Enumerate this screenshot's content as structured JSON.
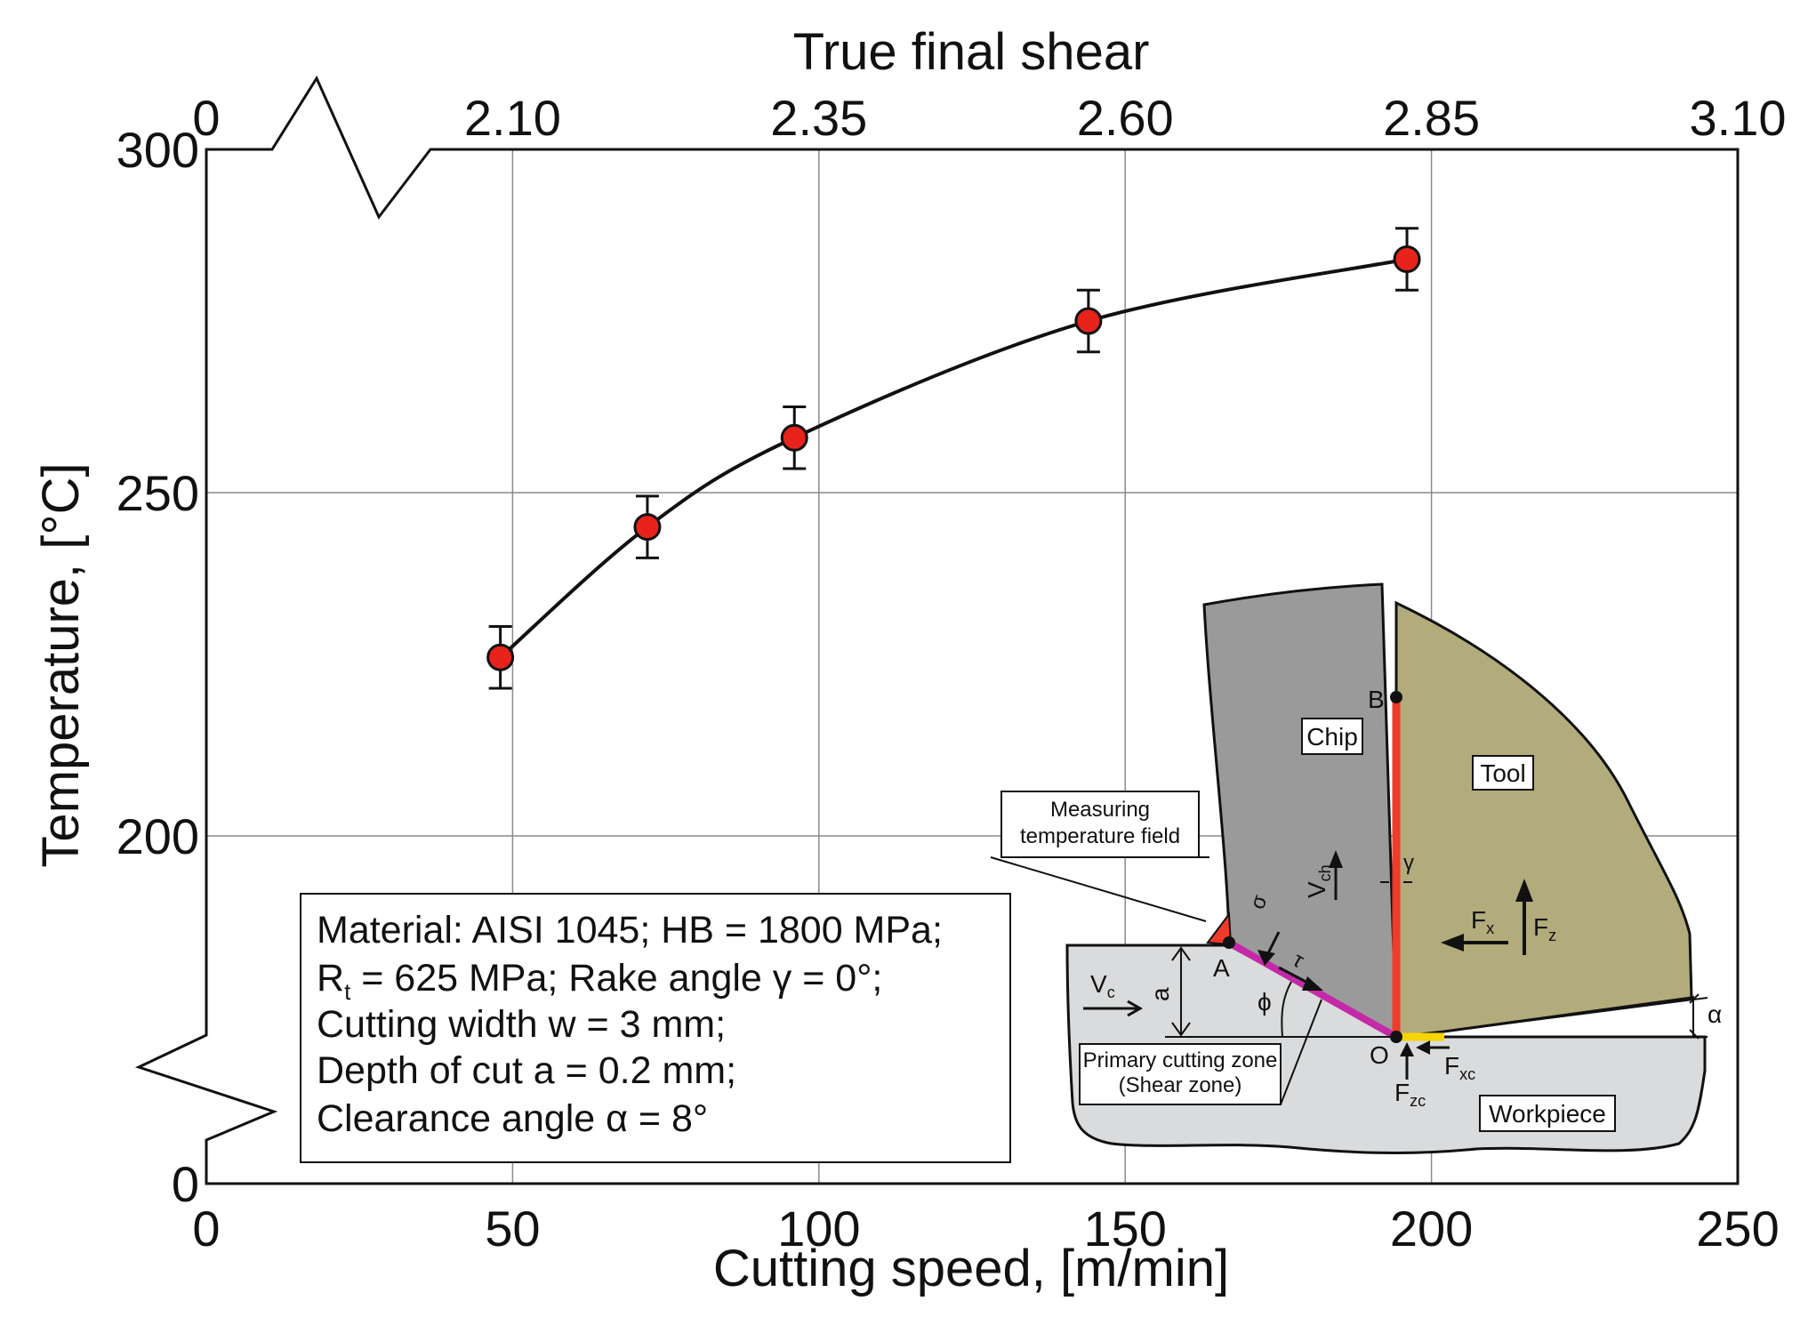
{
  "chart_data": {
    "type": "scatter",
    "xlabel": "Cutting speed, [m/min]",
    "ylabel": "Temperature, [°C]",
    "top_axis_label": "True final shear",
    "xlim": [
      0,
      250
    ],
    "ylim": [
      0,
      300
    ],
    "y_axis_break": true,
    "x_ticks": [
      "0",
      "50",
      "100",
      "150",
      "200",
      "250"
    ],
    "y_ticks": [
      "0",
      "200",
      "250",
      "300"
    ],
    "top_ticks": [
      "0",
      "2.10",
      "2.35",
      "2.60",
      "2.85",
      "3.10"
    ],
    "grid": true,
    "series": [
      {
        "x": [
          48,
          72,
          96,
          144,
          196
        ],
        "y": [
          226,
          245,
          258,
          275,
          284
        ],
        "error": [
          4.5,
          4.5,
          4.5,
          4.5,
          4.5
        ],
        "marker_color": "#e8231b",
        "line_color": "#111111"
      }
    ],
    "info_box": {
      "line1": "Material: AISI 1045; HB = 1800 MPa;",
      "line2_prefix": "R",
      "line2_sub": "t",
      "line2_suffix": " = 625 MPa; Rake angle γ = 0°;",
      "line3": "Cutting width w = 3 mm;",
      "line4": "Depth of cut a = 0.2 mm;",
      "line5": "Clearance angle α = 8°"
    },
    "diagram": {
      "chip_label": "Chip",
      "tool_label": "Tool",
      "workpiece_label": "Workpiece",
      "measuring_line1": "Measuring",
      "measuring_line2": "temperature field",
      "zone_line1": "Primary cutting zone",
      "zone_line2": "(Shear zone)",
      "point_a": "A",
      "point_b": "B",
      "point_o": "O",
      "depth_a": "a",
      "phi": "ϕ",
      "gamma": "γ",
      "alpha": "α",
      "tau": "τ",
      "sigma": "σ",
      "vc_main": "V",
      "vc_sub": "c",
      "vch_main": "V",
      "vch_sub": "ch",
      "fx_main": "F",
      "fx_sub": "x",
      "fz_main": "F",
      "fz_sub": "z",
      "fxc_main": "F",
      "fxc_sub": "xc",
      "fzc_main": "F",
      "fzc_sub": "zc",
      "chip_color": "#9a9a9a",
      "tool_color": "#b2ab7c",
      "workpiece_color": "#dadbdc",
      "shear_plane_color": "#c42aa8",
      "rake_face_color": "#f03a2a",
      "flank_color": "#f5d400"
    }
  }
}
